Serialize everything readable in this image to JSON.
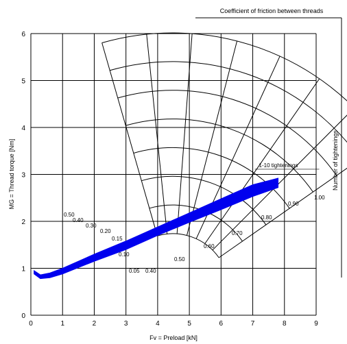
{
  "chart_data": {
    "type": "line",
    "title": "",
    "xlabel": "Fv = Preload [kN]",
    "ylabel": "MG = Thread torque [Nm]",
    "right_label": "Number of tightenings",
    "top_label": "Coefficient of friction between threads",
    "xlim": [
      0,
      9
    ],
    "ylim": [
      0,
      6
    ],
    "x_ticks": [
      "0",
      "1",
      "2",
      "3",
      "4",
      "5",
      "6",
      "7",
      "8",
      "9"
    ],
    "y_ticks": [
      "0",
      "1",
      "2",
      "3",
      "4",
      "5",
      "6"
    ],
    "grid": true,
    "series": [
      {
        "name": "1-10 tightenings",
        "color": "#0000ee",
        "x": [
          0.1,
          0.3,
          0.6,
          1.0,
          2.0,
          3.0,
          4.0,
          5.0,
          6.0,
          7.0,
          7.8
        ],
        "y_low": [
          0.88,
          0.78,
          0.8,
          0.88,
          1.15,
          1.4,
          1.7,
          1.98,
          2.25,
          2.53,
          2.72
        ],
        "y_high": [
          0.95,
          0.86,
          0.9,
          1.0,
          1.3,
          1.58,
          1.88,
          2.18,
          2.48,
          2.78,
          2.92
        ]
      }
    ],
    "friction_coefficient_labels": [
      "0.05",
      "0.10",
      "0.15",
      "0.20",
      "0.30",
      "0.40",
      "0.50"
    ],
    "tightening_coefficient_labels": [
      "0.40",
      "0.50",
      "0.60",
      "0.70",
      "0.80",
      "0.90",
      "1.00"
    ]
  }
}
